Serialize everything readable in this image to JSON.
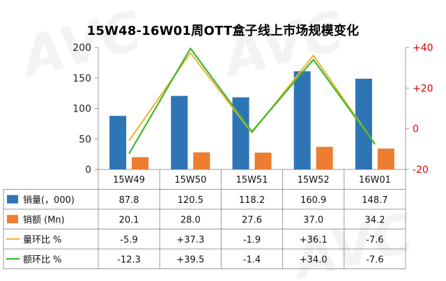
{
  "title": "15W48-16W01周OTT盒子线上市场规模变化",
  "chart_data": {
    "type": "bar",
    "categories": [
      "15W49",
      "15W50",
      "15W51",
      "15W52",
      "16W01"
    ],
    "left_axis": {
      "min": 0,
      "max": 200,
      "ticks": [
        "0",
        "50",
        "100",
        "150",
        "200"
      ]
    },
    "right_axis": {
      "min": -20,
      "max": 40,
      "ticks": [
        "-20",
        "0",
        "+20",
        "+40"
      ]
    },
    "grid": false,
    "legend": "data-table-below",
    "series": [
      {
        "name": "销量(，000)",
        "kind": "bar",
        "axis": "left",
        "color": "#2e75b6",
        "values": [
          87.8,
          120.5,
          118.2,
          160.9,
          148.7
        ],
        "labels": [
          "87.8",
          "120.5",
          "118.2",
          "160.9",
          "148.7"
        ]
      },
      {
        "name": "销额 (Mn)",
        "kind": "bar",
        "axis": "left",
        "color": "#ed7d31",
        "values": [
          20.1,
          28.0,
          27.6,
          37.0,
          34.2
        ],
        "labels": [
          "20.1",
          "28.0",
          "27.6",
          "37.0",
          "34.2"
        ]
      },
      {
        "name": "量环比 %",
        "kind": "line",
        "axis": "right",
        "color": "#f0b43c",
        "values": [
          -5.9,
          37.3,
          -1.9,
          36.1,
          -7.6
        ],
        "labels": [
          "-5.9",
          "+37.3",
          "-1.9",
          "+36.1",
          "-7.6"
        ]
      },
      {
        "name": "额环比 %",
        "kind": "line",
        "axis": "right",
        "color": "#3cb82c",
        "values": [
          -12.3,
          39.5,
          -1.4,
          34.0,
          -7.6
        ],
        "labels": [
          "-12.3",
          "+39.5",
          "-1.4",
          "+34.0",
          "-7.6"
        ]
      }
    ]
  }
}
